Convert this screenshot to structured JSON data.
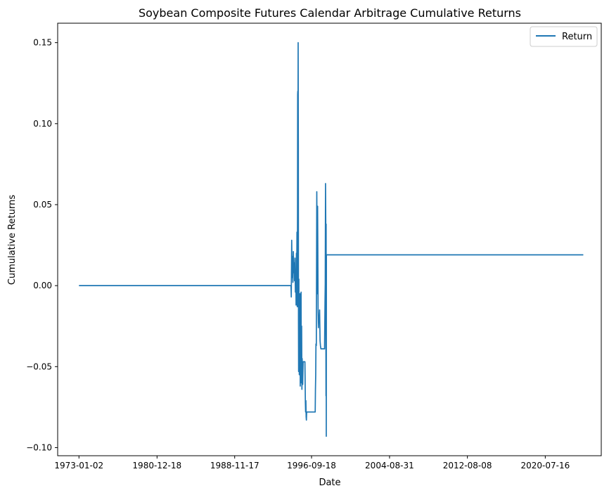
{
  "chart_data": {
    "type": "line",
    "title": "Soybean Composite Futures Calendar Arbitrage Cumulative Returns",
    "xlabel": "Date",
    "ylabel": "Cumulative Returns",
    "x_ticks": [
      "1973-01-02",
      "1980-12-18",
      "1988-11-17",
      "1996-09-18",
      "2004-08-31",
      "2012-08-08",
      "2020-07-16"
    ],
    "y_ticks": [
      "−0.10",
      "−0.05",
      "0.00",
      "0.05",
      "0.10",
      "0.15"
    ],
    "y_tick_values": [
      -0.1,
      -0.05,
      0.0,
      0.05,
      0.1,
      0.15
    ],
    "xlim": [
      "1970-11-01",
      "2026-04-01"
    ],
    "ylim": [
      -0.105,
      0.162
    ],
    "grid": false,
    "legend": {
      "position": "top-right",
      "entries": [
        "Return"
      ]
    },
    "series": [
      {
        "name": "Return",
        "color": "#1f77b4",
        "points": [
          [
            "1973-01-02",
            0.0
          ],
          [
            "1994-08-15",
            0.0
          ],
          [
            "1994-08-25",
            -0.007
          ],
          [
            "1994-09-10",
            0.028
          ],
          [
            "1994-09-25",
            0.005
          ],
          [
            "1994-10-10",
            0.018
          ],
          [
            "1994-10-25",
            0.002
          ],
          [
            "1994-11-10",
            0.021
          ],
          [
            "1994-11-25",
            0.008
          ],
          [
            "1994-12-10",
            0.014
          ],
          [
            "1994-12-25",
            0.003
          ],
          [
            "1995-01-10",
            0.017
          ],
          [
            "1995-01-25",
            -0.004
          ],
          [
            "1995-02-10",
            0.009
          ],
          [
            "1995-02-20",
            -0.012
          ],
          [
            "1995-03-05",
            0.02
          ],
          [
            "1995-03-15",
            0.004
          ],
          [
            "1995-03-25",
            0.033
          ],
          [
            "1995-04-05",
            -0.013
          ],
          [
            "1995-04-15",
            0.045
          ],
          [
            "1995-04-20",
            0.118
          ],
          [
            "1995-04-25",
            0.12
          ],
          [
            "1995-05-02",
            0.094
          ],
          [
            "1995-05-08",
            0.15
          ],
          [
            "1995-05-12",
            0.106
          ],
          [
            "1995-05-15",
            0.087
          ],
          [
            "1995-05-20",
            -0.022
          ],
          [
            "1995-05-25",
            -0.053
          ],
          [
            "1995-06-01",
            -0.01
          ],
          [
            "1995-06-05",
            0.004
          ],
          [
            "1995-06-10",
            -0.044
          ],
          [
            "1995-06-15",
            -0.02
          ],
          [
            "1995-06-20",
            -0.055
          ],
          [
            "1995-06-25",
            -0.03
          ],
          [
            "1995-07-05",
            -0.047
          ],
          [
            "1995-07-15",
            -0.005
          ],
          [
            "1995-07-25",
            -0.062
          ],
          [
            "1995-08-05",
            -0.03
          ],
          [
            "1995-08-15",
            -0.052
          ],
          [
            "1995-08-25",
            -0.004
          ],
          [
            "1995-09-05",
            -0.06
          ],
          [
            "1995-09-15",
            -0.025
          ],
          [
            "1995-09-25",
            -0.064
          ],
          [
            "1995-10-05",
            -0.045
          ],
          [
            "1995-10-25",
            -0.061
          ],
          [
            "1995-11-10",
            -0.047
          ],
          [
            "1996-01-15",
            -0.047
          ],
          [
            "1996-02-01",
            -0.072
          ],
          [
            "1996-02-10",
            -0.078
          ],
          [
            "1996-02-20",
            -0.071
          ],
          [
            "1996-03-01",
            -0.081
          ],
          [
            "1996-03-10",
            -0.083
          ],
          [
            "1996-03-20",
            -0.078
          ],
          [
            "1997-02-01",
            -0.078
          ],
          [
            "1997-02-10",
            -0.064
          ],
          [
            "1997-02-20",
            -0.055
          ],
          [
            "1997-03-01",
            -0.036
          ],
          [
            "1997-03-15",
            -0.037
          ],
          [
            "1997-04-01",
            0.058
          ],
          [
            "1997-04-10",
            0.031
          ],
          [
            "1997-04-20",
            -0.005
          ],
          [
            "1997-05-01",
            0.049
          ],
          [
            "1997-05-10",
            0.022
          ],
          [
            "1997-05-20",
            -0.016
          ],
          [
            "1997-06-01",
            -0.026
          ],
          [
            "1997-06-15",
            -0.019
          ],
          [
            "1997-07-01",
            -0.02
          ],
          [
            "1997-07-15",
            -0.015
          ],
          [
            "1997-08-01",
            -0.034
          ],
          [
            "1997-08-15",
            -0.037
          ],
          [
            "1997-09-01",
            -0.039
          ],
          [
            "1998-01-15",
            -0.039
          ],
          [
            "1998-02-01",
            -0.01
          ],
          [
            "1998-02-10",
            0.001
          ],
          [
            "1998-02-20",
            0.063
          ],
          [
            "1998-03-01",
            0.04
          ],
          [
            "1998-03-05",
            -0.015
          ],
          [
            "1998-03-10",
            -0.068
          ],
          [
            "1998-03-15",
            0.038
          ],
          [
            "1998-03-20",
            -0.093
          ],
          [
            "1998-03-25",
            0.019
          ],
          [
            "2024-06-01",
            0.019
          ]
        ]
      }
    ]
  }
}
